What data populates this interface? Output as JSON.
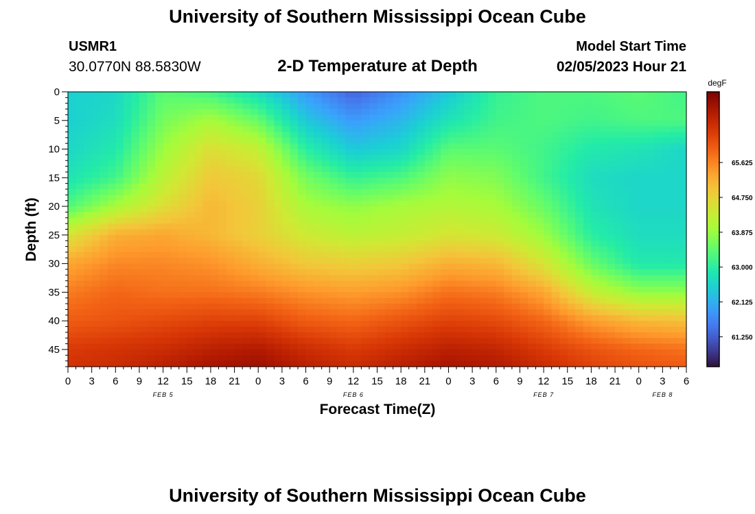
{
  "header": {
    "title": "University of Southern Mississippi Ocean Cube",
    "station": "USMR1",
    "coordinates": "30.0770N  88.5830W",
    "subtitle": "2-D Temperature at Depth",
    "model_label": "Model Start Time",
    "model_time": "02/05/2023 Hour 21"
  },
  "footer": {
    "title": "University of Southern Mississippi Ocean Cube"
  },
  "colors": {
    "colormap": [
      "#30123b",
      "#4145ab",
      "#4675ed",
      "#39a2fc",
      "#1bcfd4",
      "#24eca6",
      "#61fc6c",
      "#a4fc3b",
      "#d1e834",
      "#f3c63a",
      "#fe9b2d",
      "#f36315",
      "#d93806",
      "#b11901",
      "#7a0402"
    ]
  },
  "chart_data": {
    "type": "heatmap",
    "title": "2-D Temperature at Depth",
    "xlabel": "Forecast Time(Z)",
    "ylabel": "Depth (ft)",
    "units": "degF",
    "x_hours": [
      0,
      6,
      12,
      18,
      24,
      30,
      36,
      42,
      48,
      54,
      60,
      66,
      72,
      78
    ],
    "xlim": [
      0,
      78
    ],
    "x_tick_labels": [
      "0",
      "3",
      "6",
      "9",
      "12",
      "15",
      "18",
      "21",
      "0",
      "3",
      "6",
      "9",
      "12",
      "15",
      "18",
      "21",
      "0",
      "3",
      "6",
      "9",
      "12",
      "15",
      "18",
      "21",
      "0",
      "3",
      "6"
    ],
    "date_labels": [
      {
        "label": "FEB 5",
        "hour": 12
      },
      {
        "label": "FEB 6",
        "hour": 36
      },
      {
        "label": "FEB 7",
        "hour": 60
      },
      {
        "label": "FEB 8",
        "hour": 75
      }
    ],
    "depths_ft": [
      0,
      5,
      10,
      15,
      20,
      25,
      30,
      35,
      40,
      45,
      48
    ],
    "ylim": [
      0,
      48
    ],
    "y_ticks": [
      0,
      5,
      10,
      15,
      20,
      25,
      30,
      35,
      40,
      45
    ],
    "values": [
      [
        62.5,
        62.6,
        63.4,
        63.2,
        62.7,
        61.9,
        61.3,
        61.8,
        62.4,
        63.1,
        63.3,
        63.3,
        63.4,
        63.2
      ],
      [
        62.5,
        62.7,
        63.6,
        64.0,
        63.5,
        62.4,
        61.9,
        62.2,
        62.8,
        63.2,
        63.3,
        63.2,
        63.3,
        63.3
      ],
      [
        62.6,
        62.9,
        63.9,
        64.6,
        64.3,
        63.0,
        62.4,
        62.6,
        63.4,
        63.4,
        63.2,
        62.9,
        62.8,
        62.6
      ],
      [
        62.8,
        63.2,
        64.2,
        64.9,
        64.7,
        63.6,
        63.1,
        63.3,
        63.8,
        63.7,
        63.2,
        62.7,
        62.6,
        62.6
      ],
      [
        63.3,
        64.0,
        64.6,
        65.1,
        64.8,
        64.0,
        63.8,
        64.0,
        64.1,
        64.0,
        63.5,
        62.8,
        62.6,
        62.6
      ],
      [
        64.5,
        65.2,
        65.3,
        65.1,
        64.8,
        64.4,
        64.2,
        64.3,
        64.5,
        64.4,
        63.9,
        63.0,
        62.7,
        62.7
      ],
      [
        65.3,
        65.6,
        65.6,
        65.5,
        65.2,
        64.9,
        64.8,
        64.9,
        65.2,
        65.1,
        64.5,
        63.5,
        62.9,
        62.9
      ],
      [
        65.7,
        65.9,
        65.8,
        65.8,
        65.7,
        65.5,
        65.4,
        65.5,
        65.8,
        65.7,
        65.3,
        64.3,
        63.8,
        63.8
      ],
      [
        66.0,
        66.1,
        66.2,
        66.3,
        66.3,
        66.0,
        65.9,
        66.1,
        66.3,
        66.2,
        65.9,
        65.4,
        65.1,
        65.0
      ],
      [
        66.4,
        66.5,
        66.6,
        66.8,
        66.9,
        66.6,
        66.4,
        66.6,
        66.8,
        66.7,
        66.4,
        66.1,
        65.9,
        65.8
      ],
      [
        66.5,
        66.6,
        66.8,
        67.0,
        67.1,
        66.8,
        66.6,
        66.8,
        67.0,
        66.9,
        66.6,
        66.3,
        66.1,
        66.0
      ]
    ],
    "colorbar": {
      "label": "degF",
      "min": 60.5,
      "max": 67.4,
      "ticks": [
        "65.625",
        "64.750",
        "63.875",
        "63.000",
        "62.125",
        "61.250"
      ]
    }
  }
}
